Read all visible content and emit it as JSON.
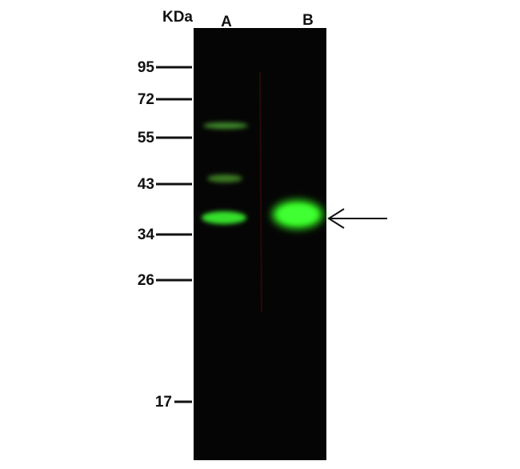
{
  "header": {
    "unit": "KDa"
  },
  "lanes": [
    "A",
    "B"
  ],
  "markers": [
    "95",
    "72",
    "55",
    "43",
    "34",
    "26",
    "17"
  ]
}
